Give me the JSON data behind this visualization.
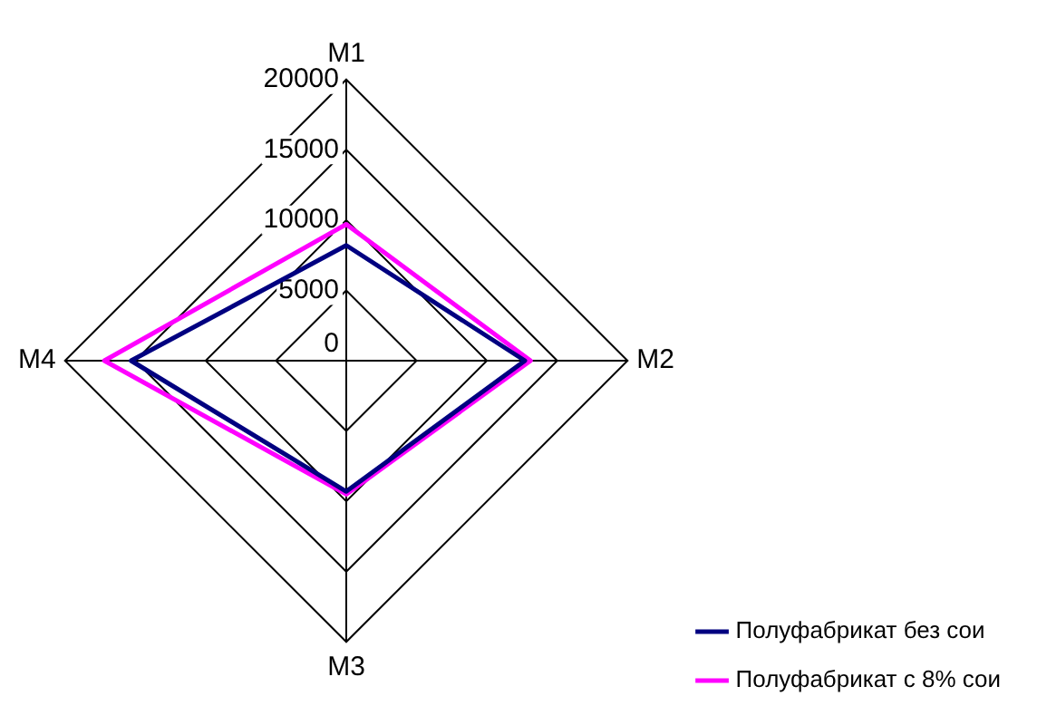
{
  "chart_data": {
    "type": "radar",
    "categories": [
      "M1",
      "M2",
      "M3",
      "M4"
    ],
    "series": [
      {
        "name": "Полуфабрикат без сои",
        "color": "#000080",
        "values": [
          8200,
          12700,
          9300,
          15300
        ]
      },
      {
        "name": "Полуфабрикат с 8% сои",
        "color": "#ff00ff",
        "values": [
          9700,
          13100,
          9500,
          17200
        ]
      }
    ],
    "ylim": [
      0,
      20000
    ],
    "yticks": [
      0,
      5000,
      10000,
      15000,
      20000
    ],
    "grid": true,
    "legend": "bottom right",
    "marker": "none",
    "line_style": "solid"
  }
}
